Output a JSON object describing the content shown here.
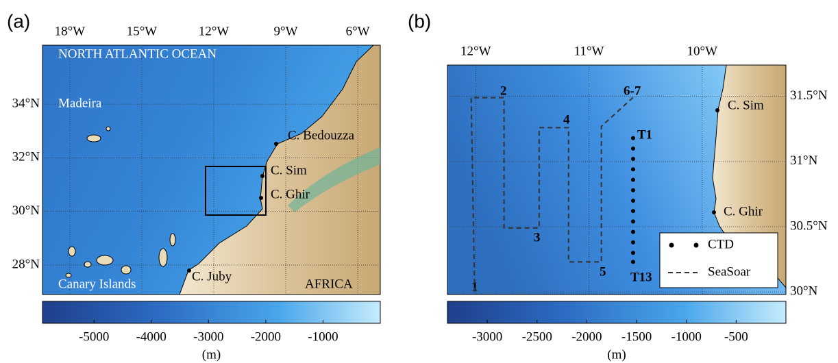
{
  "panels": [
    {
      "label": "(a)",
      "map": {
        "xlim": [
          -19.14,
          -5.06
        ],
        "ylim": [
          26.9,
          36.2
        ],
        "xticks": [
          {
            "value": -18,
            "label": "18°W"
          },
          {
            "value": -15,
            "label": "15°W"
          },
          {
            "value": -12,
            "label": "12°W"
          },
          {
            "value": -9,
            "label": "9°W"
          },
          {
            "value": -6,
            "label": "6°W"
          }
        ],
        "yticks": [
          {
            "value": 34,
            "label": "34°N"
          },
          {
            "value": 32,
            "label": "32°N"
          },
          {
            "value": 30,
            "label": "30°N"
          },
          {
            "value": 28,
            "label": "28°N"
          }
        ]
      },
      "annotations": [
        "NORTH ATLANTIC OCEAN",
        "Madeira",
        "C. Bedouzza",
        "C. Sim",
        "C. Ghir",
        "C. Juby",
        "Canary Islands",
        "AFRICA"
      ],
      "colorbar": {
        "clim": [
          -5900,
          0
        ],
        "ticks": [
          -5000,
          -4000,
          -3000,
          -2000,
          -1000
        ],
        "unit": "(m)"
      }
    },
    {
      "label": "(b)",
      "map": {
        "xlim": [
          -12.25,
          -9.26
        ],
        "ylim": [
          29.98,
          31.74
        ],
        "xticks": [
          {
            "value": -12,
            "label": "12°W"
          },
          {
            "value": -11,
            "label": "11°W"
          },
          {
            "value": -10,
            "label": "10°W"
          }
        ],
        "yticks": [
          {
            "value": 31.5,
            "label": "31.5°N"
          },
          {
            "value": 31,
            "label": "31°N"
          },
          {
            "value": 30.5,
            "label": "30.5°N"
          },
          {
            "value": 30,
            "label": "30°N"
          }
        ]
      },
      "annotations": [
        "C. Sim",
        "C. Ghir",
        "1",
        "2",
        "3",
        "4",
        "5",
        "6-7",
        "T1",
        "T13"
      ],
      "seasoar": {
        "lon": [
          -12.01,
          -12.04,
          -11.75,
          -11.75,
          -11.44,
          -11.44,
          -11.18,
          -11.18,
          -10.89,
          -10.89,
          -10.6
        ],
        "lat": [
          30.0,
          31.49,
          31.49,
          30.49,
          30.49,
          31.26,
          31.26,
          30.23,
          30.23,
          31.27,
          31.5
        ]
      },
      "ctd": {
        "lon": [
          -10.61,
          -10.61,
          -10.61,
          -10.61,
          -10.61,
          -10.61,
          -10.61,
          -10.61,
          -10.61,
          -10.61,
          -10.61,
          -10.61,
          -10.61
        ],
        "lat": [
          31.18,
          31.1,
          31.02,
          30.94,
          30.86,
          30.78,
          30.7,
          30.62,
          30.54,
          30.46,
          30.38,
          30.3,
          30.23
        ]
      },
      "legend": [
        "CTD",
        "SeaSoar"
      ],
      "colorbar": {
        "clim": [
          -3400,
          0
        ],
        "ticks": [
          -3000,
          -2500,
          -2000,
          -1500,
          -1000,
          -500
        ],
        "unit": "(m)"
      }
    }
  ]
}
